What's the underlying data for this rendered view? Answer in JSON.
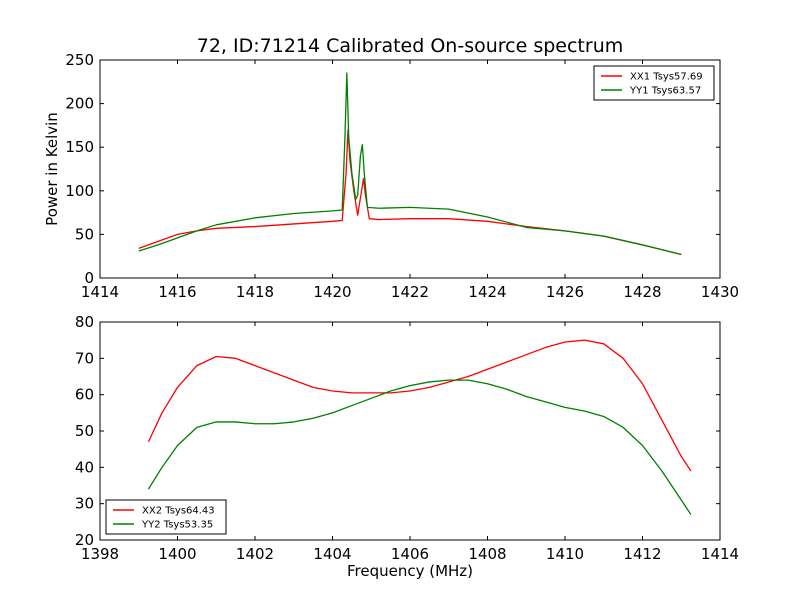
{
  "chart_data": [
    {
      "type": "line",
      "title": "72, ID:71214 Calibrated On-source spectrum",
      "xlabel": "",
      "ylabel": "Power in Kelvin",
      "xlim": [
        1414,
        1430
      ],
      "ylim": [
        0,
        250
      ],
      "x_ticks": [
        1414,
        1416,
        1418,
        1420,
        1422,
        1424,
        1426,
        1428,
        1430
      ],
      "y_ticks": [
        0,
        50,
        100,
        150,
        200,
        250
      ],
      "grid": false,
      "legend_position": "top-right",
      "series": [
        {
          "name": "XX1 Tsys57.69",
          "color": "#ff0000",
          "x": [
            1415.0,
            1415.5,
            1416.0,
            1416.5,
            1417.0,
            1418.0,
            1419.0,
            1420.0,
            1420.25,
            1420.35,
            1420.4,
            1420.45,
            1420.55,
            1420.65,
            1420.75,
            1420.8,
            1420.85,
            1420.95,
            1421.2,
            1422.0,
            1423.0,
            1424.0,
            1425.0,
            1426.0,
            1427.0,
            1428.0,
            1429.0
          ],
          "y": [
            34,
            42,
            50,
            54,
            57,
            59,
            62,
            65,
            66,
            120,
            170,
            135,
            100,
            72,
            100,
            114,
            95,
            68,
            67,
            68,
            68,
            65,
            59,
            54,
            48,
            38,
            27
          ]
        },
        {
          "name": "YY1 Tsys63.57",
          "color": "#008000",
          "x": [
            1415.0,
            1415.5,
            1416.0,
            1416.5,
            1417.0,
            1418.0,
            1419.0,
            1420.0,
            1420.25,
            1420.32,
            1420.37,
            1420.42,
            1420.5,
            1420.6,
            1420.65,
            1420.72,
            1420.77,
            1420.82,
            1420.9,
            1421.2,
            1422.0,
            1423.0,
            1424.0,
            1425.0,
            1426.0,
            1427.0,
            1428.0,
            1429.0
          ],
          "y": [
            31,
            38,
            46,
            54,
            61,
            69,
            74,
            77,
            78,
            160,
            235,
            160,
            120,
            90,
            95,
            140,
            153,
            120,
            81,
            80,
            81,
            79,
            70,
            58,
            54,
            48,
            38,
            27
          ]
        }
      ]
    },
    {
      "type": "line",
      "title": "",
      "xlabel": "Frequency (MHz)",
      "ylabel": "",
      "xlim": [
        1398,
        1414
      ],
      "ylim": [
        20,
        80
      ],
      "x_ticks": [
        1398,
        1400,
        1402,
        1404,
        1406,
        1408,
        1410,
        1412,
        1414
      ],
      "y_ticks": [
        20,
        30,
        40,
        50,
        60,
        70,
        80
      ],
      "grid": false,
      "legend_position": "bottom-left",
      "series": [
        {
          "name": "XX2 Tsys64.43",
          "color": "#ff0000",
          "x": [
            1399.25,
            1399.6,
            1400.0,
            1400.5,
            1401.0,
            1401.5,
            1402.0,
            1402.5,
            1403.0,
            1403.5,
            1404.0,
            1404.5,
            1405.0,
            1405.5,
            1406.0,
            1406.5,
            1407.0,
            1407.5,
            1408.0,
            1408.5,
            1409.0,
            1409.5,
            1410.0,
            1410.5,
            1411.0,
            1411.5,
            1412.0,
            1412.5,
            1413.0,
            1413.25
          ],
          "y": [
            47,
            55,
            62,
            68,
            70.5,
            70,
            68,
            66,
            64,
            62,
            61,
            60.5,
            60.5,
            60.5,
            61,
            62,
            63.5,
            65,
            67,
            69,
            71,
            73,
            74.5,
            75,
            74,
            70,
            63,
            53,
            43,
            39
          ]
        },
        {
          "name": "YY2 Tsys53.35",
          "color": "#008000",
          "x": [
            1399.25,
            1399.6,
            1400.0,
            1400.5,
            1401.0,
            1401.5,
            1402.0,
            1402.5,
            1403.0,
            1403.5,
            1404.0,
            1404.5,
            1405.0,
            1405.5,
            1406.0,
            1406.5,
            1407.0,
            1407.5,
            1408.0,
            1408.5,
            1409.0,
            1409.5,
            1410.0,
            1410.5,
            1411.0,
            1411.5,
            1412.0,
            1412.5,
            1413.0,
            1413.25
          ],
          "y": [
            34,
            40,
            46,
            51,
            52.5,
            52.5,
            52,
            52,
            52.5,
            53.5,
            55,
            57,
            59,
            61,
            62.5,
            63.5,
            64,
            64,
            63,
            61.5,
            59.5,
            58,
            56.5,
            55.5,
            54,
            51,
            46,
            39,
            31,
            27
          ]
        }
      ]
    }
  ]
}
